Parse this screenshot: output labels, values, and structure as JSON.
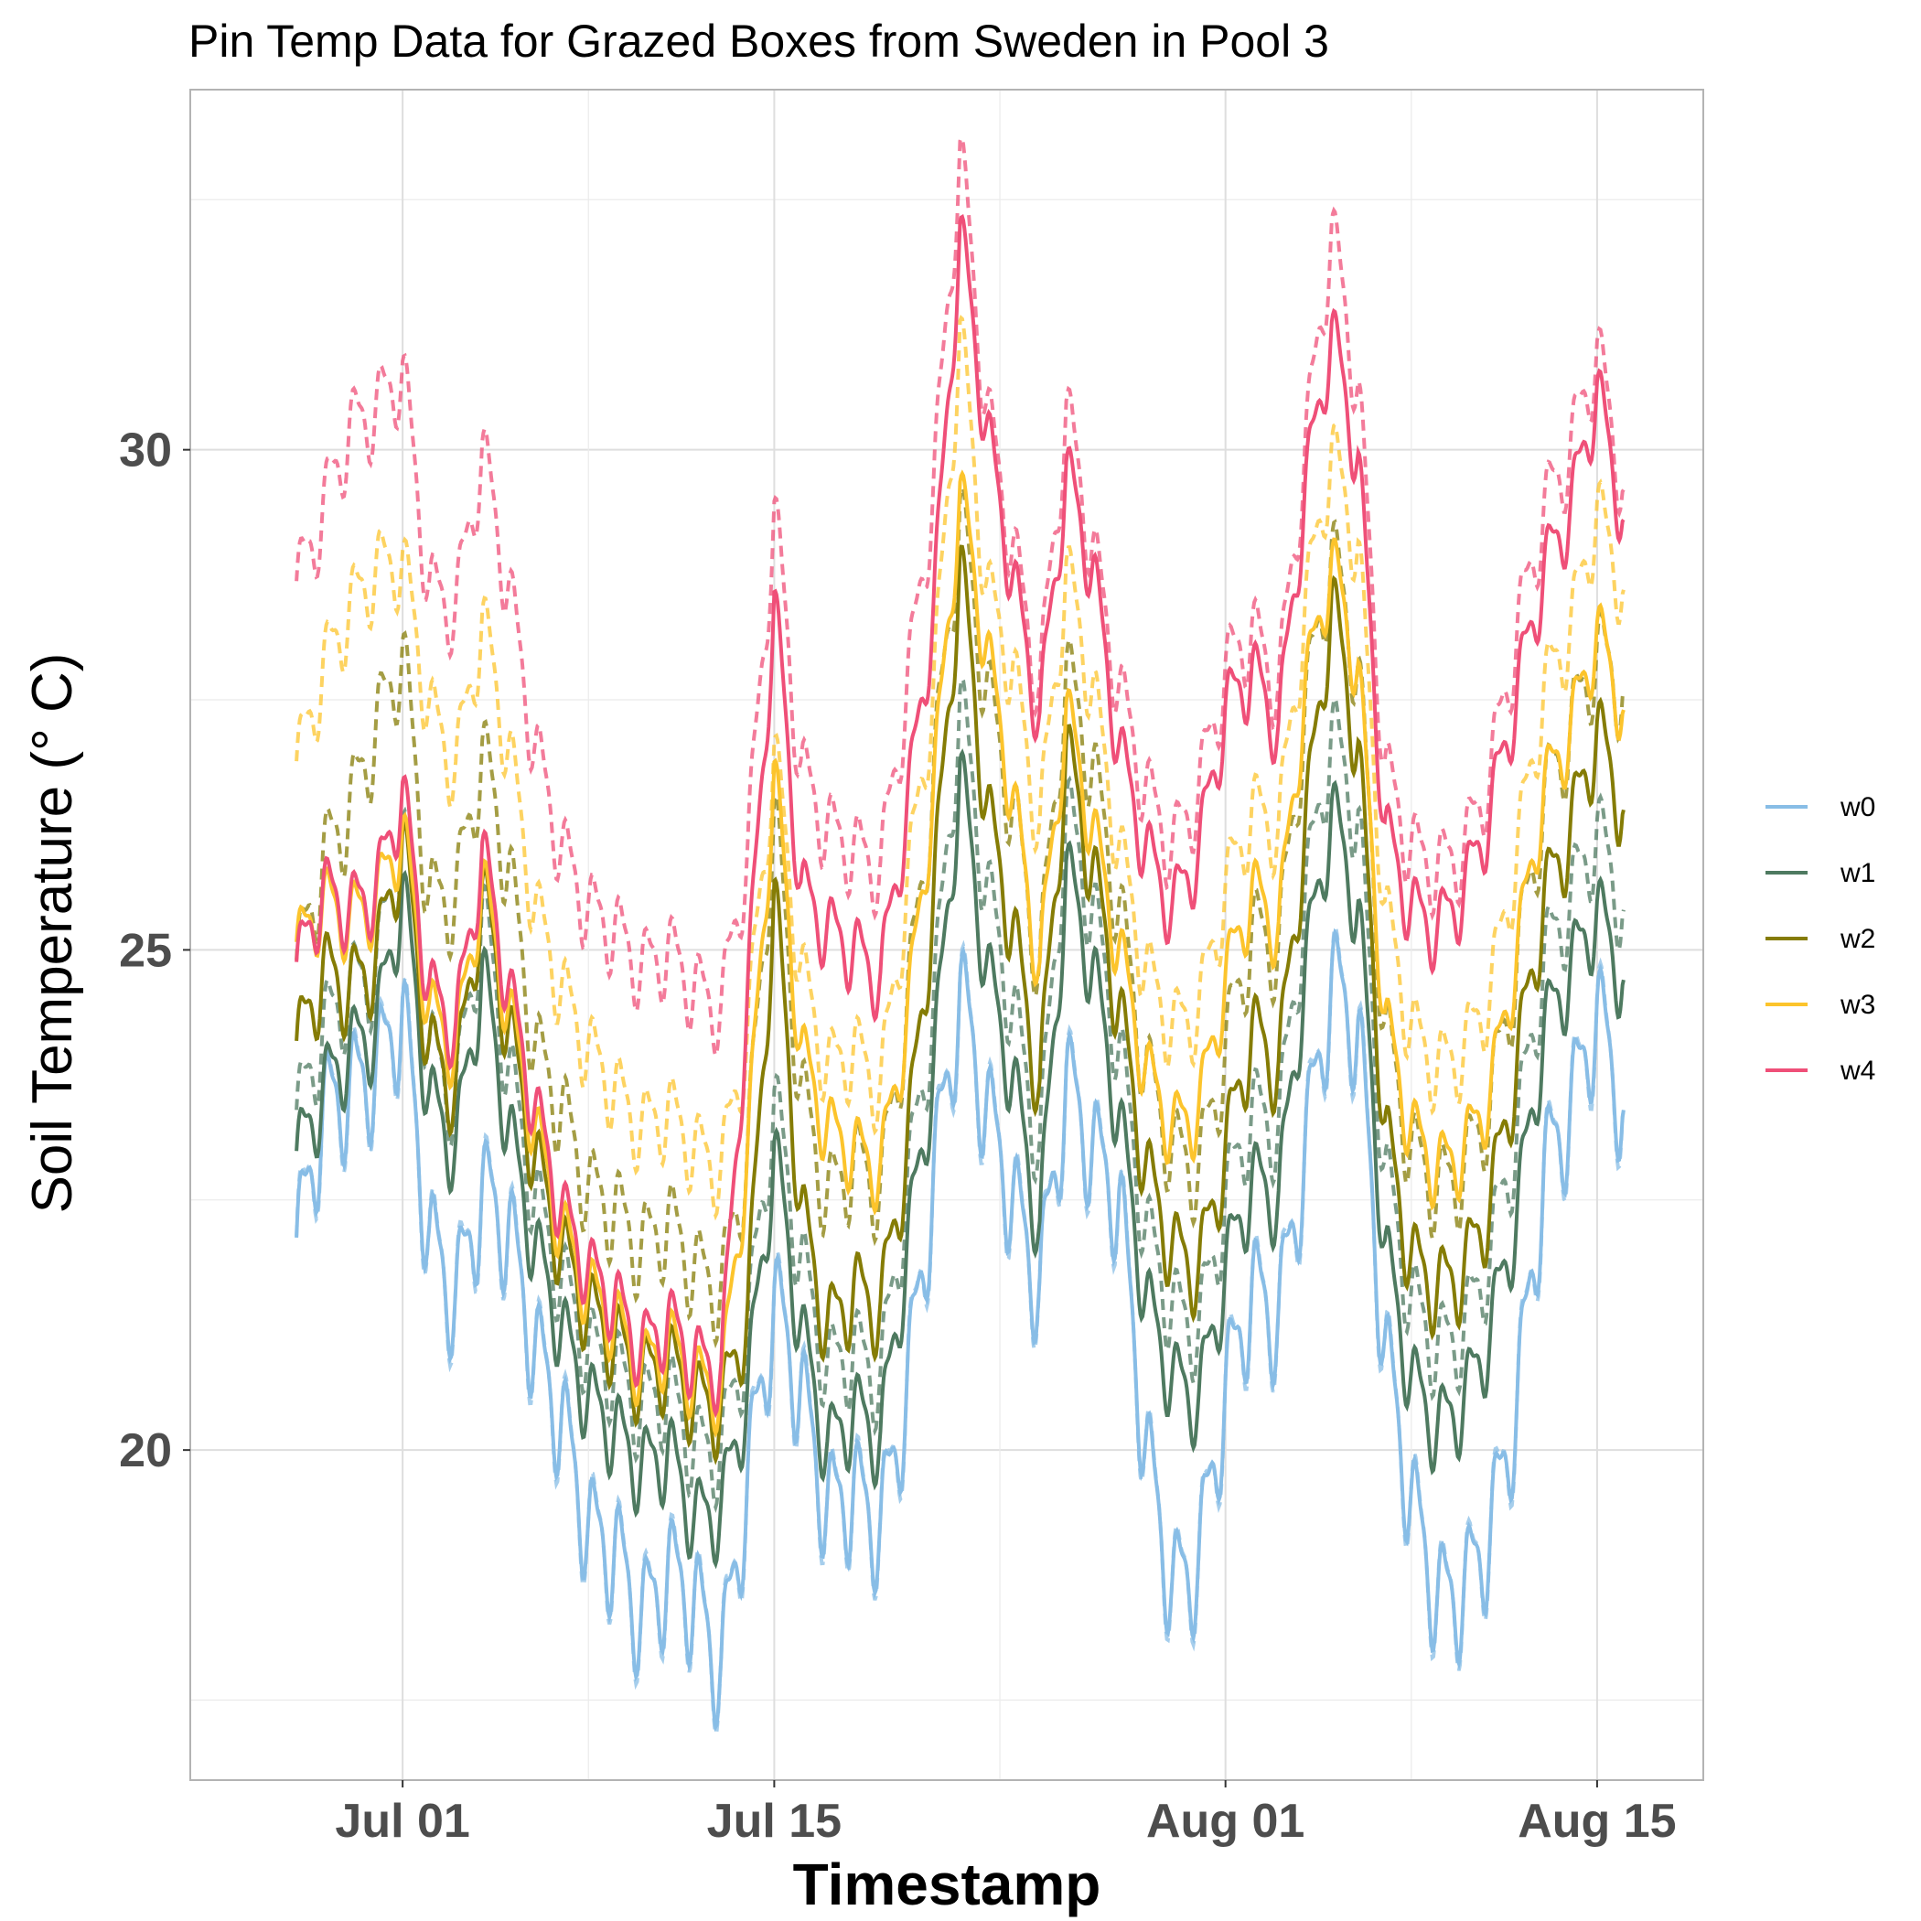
{
  "chart_data": {
    "type": "line",
    "title": "Pin Temp Data for Grazed Boxes from Sweden in Pool 3",
    "xlabel": "Timestamp",
    "ylabel": "Soil Temperature (° C)",
    "x_range": [
      "2023-06-27",
      "2023-08-16"
    ],
    "x_ticks": [
      {
        "date": "2023-07-01",
        "label": "Jul 01"
      },
      {
        "date": "2023-07-15",
        "label": "Jul 15"
      },
      {
        "date": "2023-08-01",
        "label": "Aug 01"
      },
      {
        "date": "2023-08-15",
        "label": "Aug 15"
      }
    ],
    "ylim": [
      16.7,
      33.6
    ],
    "y_ticks": [
      20,
      25,
      30
    ],
    "grid": true,
    "legend_position": "right",
    "legend_note": "solid and dashed line styles share each color",
    "x": [
      "2023-06-27",
      "2023-06-28",
      "2023-06-29",
      "2023-06-30",
      "2023-07-01",
      "2023-07-02",
      "2023-07-03",
      "2023-07-04",
      "2023-07-05",
      "2023-07-06",
      "2023-07-07",
      "2023-07-08",
      "2023-07-09",
      "2023-07-10",
      "2023-07-11",
      "2023-07-12",
      "2023-07-13",
      "2023-07-14",
      "2023-07-15",
      "2023-07-16",
      "2023-07-17",
      "2023-07-18",
      "2023-07-19",
      "2023-07-20",
      "2023-07-21",
      "2023-07-22",
      "2023-07-23",
      "2023-07-24",
      "2023-07-25",
      "2023-07-26",
      "2023-07-27",
      "2023-07-28",
      "2023-07-29",
      "2023-07-30",
      "2023-07-31",
      "2023-08-01",
      "2023-08-02",
      "2023-08-03",
      "2023-08-04",
      "2023-08-05",
      "2023-08-06",
      "2023-08-07",
      "2023-08-08",
      "2023-08-09",
      "2023-08-10",
      "2023-08-11",
      "2023-08-12",
      "2023-08-13",
      "2023-08-14",
      "2023-08-15",
      "2023-08-16"
    ],
    "series": [
      {
        "name": "w0",
        "color": "#88bde6",
        "values": [
          22.0,
          23.4,
          23.6,
          23.8,
          24.4,
          22.1,
          21.5,
          22.6,
          22.2,
          21.0,
          20.3,
          19.2,
          19.0,
          18.3,
          18.8,
          18.5,
          17.8,
          19.7,
          21.5,
          20.6,
          19.4,
          19.6,
          19.2,
          20.6,
          22.7,
          24.6,
          23.4,
          22.5,
          21.6,
          23.7,
          23.0,
          22.5,
          20.0,
          18.6,
          18.9,
          20.6,
          21.6,
          21.3,
          23.0,
          24.7,
          24.2,
          21.0,
          19.5,
          18.5,
          18.6,
          19.2,
          20.5,
          22.8,
          23.4,
          24.4,
          23.4
        ],
        "dash_values": [
          22.0,
          23.4,
          23.6,
          23.8,
          24.4,
          22.1,
          21.5,
          22.6,
          22.2,
          21.0,
          20.3,
          19.2,
          19.0,
          18.3,
          18.8,
          18.5,
          17.8,
          19.7,
          21.5,
          20.6,
          19.4,
          19.6,
          19.2,
          20.6,
          22.7,
          24.6,
          23.4,
          22.5,
          21.6,
          23.7,
          23.0,
          22.5,
          20.0,
          18.6,
          18.9,
          20.6,
          21.6,
          21.3,
          23.0,
          24.7,
          24.2,
          21.0,
          19.5,
          18.5,
          18.6,
          19.2,
          20.5,
          22.8,
          23.4,
          24.4,
          23.4
        ]
      },
      {
        "name": "w1",
        "color": "#4e7a60",
        "values": [
          22.9,
          23.6,
          24.0,
          24.2,
          25.6,
          23.5,
          23.0,
          24.8,
          23.2,
          22.0,
          21.2,
          20.5,
          20.2,
          19.8,
          20.0,
          19.3,
          19.4,
          20.6,
          23.0,
          21.2,
          20.0,
          20.4,
          20.1,
          22.0,
          23.8,
          26.8,
          24.8,
          23.7,
          22.2,
          25.8,
          24.8,
          23.3,
          21.5,
          20.7,
          20.5,
          21.8,
          22.7,
          22.5,
          24.8,
          26.4,
          25.4,
          22.0,
          20.7,
          20.2,
          20.5,
          21.2,
          22.4,
          24.2,
          24.8,
          25.4,
          24.7
        ],
        "dash_values": [
          23.3,
          24.2,
          24.6,
          24.8,
          26.2,
          24.0,
          23.5,
          25.4,
          23.8,
          22.5,
          21.7,
          21.0,
          20.8,
          20.4,
          20.6,
          20.0,
          20.0,
          21.2,
          23.5,
          21.9,
          20.8,
          21.0,
          20.7,
          22.6,
          24.4,
          27.5,
          25.6,
          24.4,
          23.0,
          26.4,
          25.4,
          24.0,
          22.2,
          21.4,
          21.2,
          22.5,
          23.4,
          23.2,
          25.5,
          27.2,
          26.3,
          22.8,
          21.5,
          21.0,
          21.2,
          22.0,
          23.2,
          24.9,
          25.5,
          26.2,
          25.4
        ]
      },
      {
        "name": "w2",
        "color": "#857c05",
        "values": [
          24.0,
          24.8,
          24.6,
          24.9,
          26.1,
          24.0,
          23.6,
          25.6,
          24.2,
          22.9,
          22.0,
          21.4,
          21.1,
          20.7,
          20.9,
          20.5,
          20.4,
          21.4,
          25.6,
          22.4,
          21.2,
          21.6,
          21.4,
          23.0,
          25.5,
          28.9,
          26.4,
          25.2,
          23.6,
          27.0,
          25.8,
          24.4,
          22.8,
          22.0,
          21.8,
          23.0,
          24.2,
          23.8,
          26.2,
          28.5,
          27.0,
          23.2,
          21.9,
          21.6,
          21.8,
          22.5,
          23.9,
          25.5,
          26.2,
          27.2,
          26.4
        ],
        "dash_values": [
          24.8,
          25.9,
          26.4,
          27.2,
          28.0,
          25.5,
          25.5,
          27.0,
          25.8,
          24.0,
          23.4,
          22.6,
          22.4,
          22.0,
          22.3,
          21.8,
          21.6,
          23.0,
          26.4,
          23.6,
          22.5,
          22.9,
          22.6,
          24.4,
          26.7,
          29.4,
          27.6,
          26.4,
          24.8,
          27.8,
          26.8,
          25.4,
          23.8,
          23.0,
          22.8,
          24.0,
          25.2,
          25.0,
          27.4,
          29.0,
          27.8,
          24.2,
          23.0,
          22.6,
          22.8,
          23.5,
          24.9,
          26.5,
          27.2,
          28.0,
          27.6
        ]
      },
      {
        "name": "w3",
        "color": "#fcc42c",
        "values": [
          25.0,
          25.5,
          25.3,
          25.5,
          26.2,
          24.4,
          24.0,
          25.7,
          24.4,
          23.2,
          22.2,
          21.6,
          21.3,
          20.8,
          21.1,
          20.7,
          20.6,
          23.0,
          26.8,
          24.0,
          23.2,
          23.0,
          22.8,
          24.3,
          26.6,
          29.6,
          28.0,
          26.5,
          24.8,
          27.4,
          26.2,
          25.0,
          23.8,
          23.2,
          23.4,
          24.7,
          25.6,
          25.2,
          27.6,
          28.9,
          27.8,
          24.3,
          23.2,
          22.8,
          23.0,
          23.6,
          25.0,
          26.6,
          27.2,
          28.2,
          27.4
        ],
        "dash_values": [
          26.8,
          27.8,
          28.4,
          28.8,
          28.9,
          27.4,
          26.8,
          28.3,
          27.0,
          25.4,
          24.6,
          24.0,
          23.6,
          23.2,
          23.4,
          23.0,
          22.8,
          24.2,
          27.0,
          24.8,
          23.8,
          24.0,
          23.6,
          25.6,
          27.6,
          31.2,
          28.6,
          27.8,
          26.2,
          28.8,
          27.6,
          26.0,
          24.8,
          24.2,
          24.4,
          25.6,
          26.4,
          26.2,
          28.4,
          30.0,
          29.0,
          25.4,
          24.2,
          23.8,
          24.0,
          24.6,
          26.0,
          27.6,
          28.2,
          29.4,
          28.6
        ]
      },
      {
        "name": "w4",
        "color": "#ef4f78",
        "values": [
          24.8,
          25.6,
          25.4,
          25.6,
          26.6,
          24.6,
          24.2,
          26.0,
          24.6,
          23.4,
          22.4,
          21.8,
          21.5,
          21.0,
          21.3,
          20.9,
          20.8,
          24.6,
          28.5,
          25.6,
          25.2,
          25.0,
          24.7,
          26.4,
          28.4,
          32.2,
          30.2,
          28.7,
          27.3,
          29.8,
          28.8,
          27.0,
          26.0,
          25.4,
          26.0,
          27.4,
          27.8,
          27.2,
          29.6,
          31.2,
          29.9,
          26.2,
          25.4,
          25.2,
          25.6,
          26.4,
          27.6,
          28.8,
          29.4,
          30.6,
          29.3
        ],
        "dash_values": [
          28.6,
          29.4,
          30.2,
          30.4,
          30.8,
          28.6,
          28.4,
          30.0,
          28.6,
          27.0,
          26.0,
          25.4,
          25.2,
          24.8,
          25.0,
          24.6,
          24.4,
          26.0,
          29.4,
          26.8,
          26.2,
          26.0,
          25.8,
          27.6,
          29.6,
          33.0,
          30.4,
          29.0,
          27.6,
          30.4,
          29.0,
          27.6,
          26.6,
          26.0,
          26.6,
          27.8,
          28.2,
          27.6,
          30.0,
          32.2,
          30.6,
          26.8,
          26.0,
          25.8,
          26.0,
          26.8,
          28.2,
          29.4,
          30.0,
          31.0,
          29.6
        ]
      }
    ]
  }
}
